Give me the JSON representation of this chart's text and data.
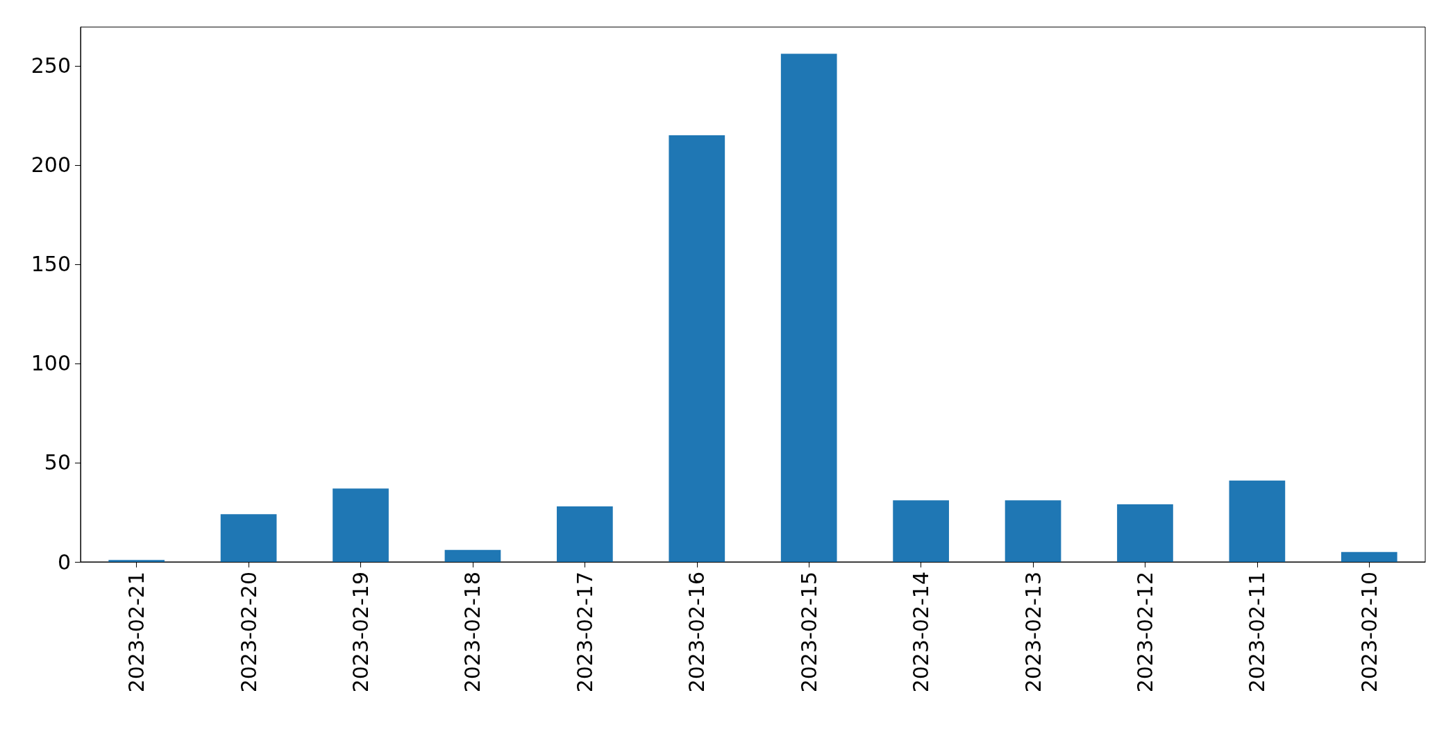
{
  "chart_data": {
    "type": "bar",
    "categories": [
      "2023-02-21",
      "2023-02-20",
      "2023-02-19",
      "2023-02-18",
      "2023-02-17",
      "2023-02-16",
      "2023-02-15",
      "2023-02-14",
      "2023-02-13",
      "2023-02-12",
      "2023-02-11",
      "2023-02-10"
    ],
    "values": [
      1,
      24,
      37,
      6,
      28,
      215,
      256,
      31,
      31,
      29,
      41,
      5
    ],
    "color": "#1f77b4",
    "ylim": [
      0,
      269.5
    ],
    "yticks": [
      0,
      50,
      100,
      150,
      200,
      250
    ],
    "grid": false
  }
}
